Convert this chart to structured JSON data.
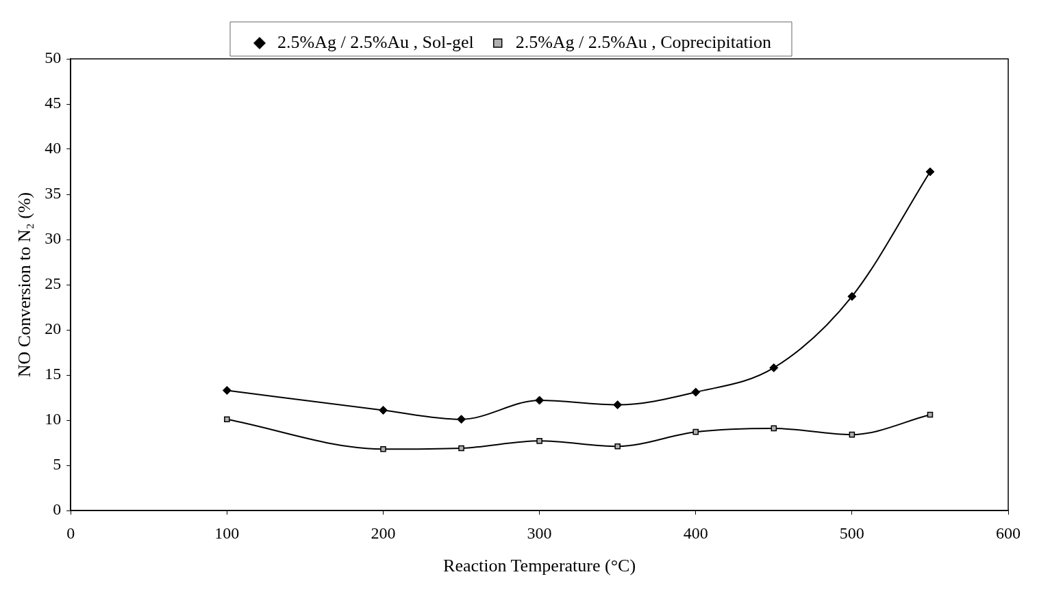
{
  "chart_data": {
    "type": "line",
    "xlabel": "Reaction Temperature (°C)",
    "ylabel": "NO Conversion to N₂ (%)",
    "x": [
      100,
      200,
      250,
      300,
      350,
      400,
      450,
      500,
      550
    ],
    "series": [
      {
        "name": "2.5%Ag / 2.5%Au , Sol-gel",
        "color": "#000000",
        "marker": "diamond",
        "values": [
          13.3,
          11.1,
          10.1,
          12.2,
          11.7,
          13.1,
          15.8,
          23.7,
          37.5
        ]
      },
      {
        "name": "2.5%Ag / 2.5%Au , Coprecipitation",
        "color": "#000000",
        "marker": "square",
        "values": [
          10.1,
          6.8,
          6.9,
          7.7,
          7.1,
          8.7,
          9.1,
          8.4,
          10.6
        ]
      }
    ],
    "xlim": [
      0,
      600
    ],
    "xticks": [
      0,
      100,
      200,
      300,
      400,
      500,
      600
    ],
    "ylim": [
      0,
      50
    ],
    "yticks": [
      0,
      5,
      10,
      15,
      20,
      25,
      30,
      35,
      40,
      45,
      50
    ],
    "grid": false,
    "legend": "top",
    "line_style": "solid"
  }
}
